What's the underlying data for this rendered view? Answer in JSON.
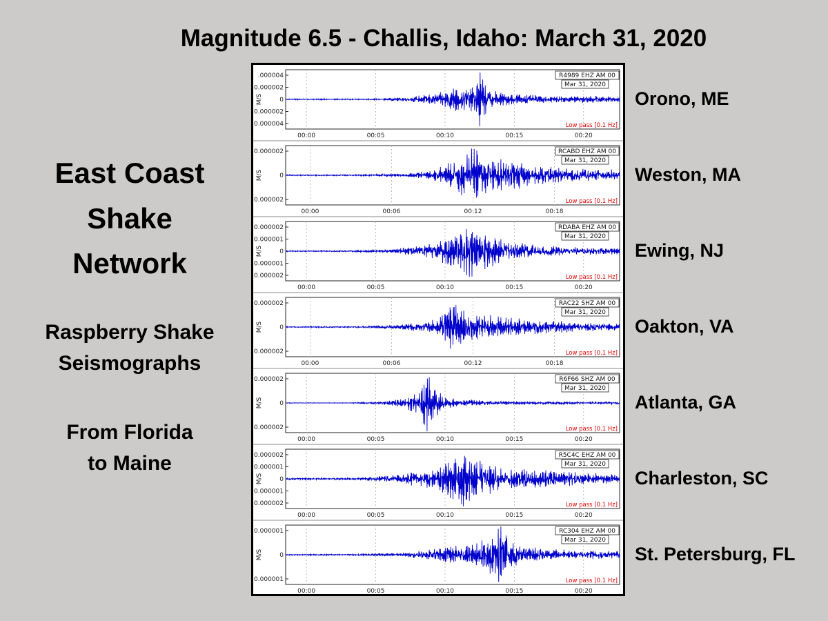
{
  "slide": {
    "title": "Magnitude 6.5 -  Challis, Idaho: March 31, 2020",
    "network_lines": [
      "East Coast",
      "Shake",
      "Network"
    ],
    "subtitle_lines": [
      "Raspberry Shake",
      "Seismographs"
    ],
    "range_lines": [
      "From Florida",
      "to Maine"
    ]
  },
  "colors": {
    "background": "#cdcbca",
    "trace": "#0000cc",
    "lowpass_text": "#dd0000",
    "grid": "#aaaaaa"
  },
  "chart_data": [
    {
      "type": "line",
      "station_label": "Orono, ME",
      "channel": "R4989 EHZ AM 00",
      "date": "Mar 31, 2020",
      "filter": "Low pass [0.1 Hz]",
      "ylabel": "M/S",
      "yticks": [
        ".000004",
        "0.000002",
        "0",
        "0.000002",
        "0.000004"
      ],
      "ylim": [
        -5e-06,
        5e-06
      ],
      "xticks": [
        "00:00",
        "00:05",
        "00:10",
        "00:15",
        "00:20"
      ],
      "xtick_minutes": [
        0,
        5,
        10,
        15,
        20
      ],
      "xlim_minutes": [
        -1.5,
        22.6
      ],
      "envelope_minutes": [
        [
          5,
          0.02
        ],
        [
          7.5,
          0.08
        ],
        [
          9.5,
          0.2
        ],
        [
          10.5,
          0.4
        ],
        [
          11.5,
          0.4
        ],
        [
          12.3,
          0.55
        ],
        [
          12.5,
          1.0
        ],
        [
          12.7,
          0.75
        ],
        [
          13.2,
          0.35
        ],
        [
          14,
          0.22
        ],
        [
          16,
          0.15
        ],
        [
          18,
          0.1
        ],
        [
          20,
          0.12
        ],
        [
          22.6,
          0.1
        ]
      ]
    },
    {
      "type": "line",
      "station_label": "Weston, MA",
      "channel": "RCABD EHZ AM 00",
      "date": "Mar 31, 2020",
      "filter": "Low pass [0.1 Hz]",
      "ylabel": "M/S",
      "yticks": [
        "0.000002",
        "0",
        "0.000002"
      ],
      "ylim": [
        -2e-06,
        2e-06
      ],
      "xticks": [
        "00:00",
        "00:06",
        "00:12",
        "00:18"
      ],
      "xtick_minutes": [
        0,
        6,
        12,
        18
      ],
      "xlim_minutes": [
        -1.8,
        22.8
      ],
      "envelope_minutes": [
        [
          3,
          0.02
        ],
        [
          7,
          0.05
        ],
        [
          9,
          0.15
        ],
        [
          10,
          0.35
        ],
        [
          11,
          0.65
        ],
        [
          11.8,
          0.8
        ],
        [
          12.3,
          1.0
        ],
        [
          12.8,
          0.7
        ],
        [
          13.8,
          0.55
        ],
        [
          15,
          0.45
        ],
        [
          16.5,
          0.32
        ],
        [
          18,
          0.25
        ],
        [
          20,
          0.22
        ],
        [
          22.8,
          0.18
        ]
      ]
    },
    {
      "type": "line",
      "station_label": "Ewing, NJ",
      "channel": "RDABA EHZ AM 00",
      "date": "Mar 31, 2020",
      "filter": "Low pass [0.1 Hz]",
      "ylabel": "M/S",
      "yticks": [
        "0.000002",
        "0.000001",
        "0",
        "0.000001",
        "0.000002"
      ],
      "ylim": [
        -2e-06,
        2e-06
      ],
      "xticks": [
        "00:00",
        "00:05",
        "00:10",
        "00:15",
        "00:20"
      ],
      "xtick_minutes": [
        0,
        5,
        10,
        15,
        20
      ],
      "xlim_minutes": [
        -1.5,
        22.6
      ],
      "envelope_minutes": [
        [
          3,
          0.02
        ],
        [
          6,
          0.06
        ],
        [
          8,
          0.15
        ],
        [
          9.5,
          0.3
        ],
        [
          10.5,
          0.55
        ],
        [
          11.2,
          0.8
        ],
        [
          11.6,
          1.0
        ],
        [
          12.2,
          0.65
        ],
        [
          13,
          0.55
        ],
        [
          14,
          0.4
        ],
        [
          16,
          0.25
        ],
        [
          18,
          0.15
        ],
        [
          20,
          0.12
        ],
        [
          22.6,
          0.1
        ]
      ]
    },
    {
      "type": "line",
      "station_label": "Oakton, VA",
      "channel": "RAC22 SHZ AM 00",
      "date": "Mar 31, 2020",
      "filter": "Low pass [0.1 Hz]",
      "ylabel": "M/S",
      "yticks": [
        "0.000002",
        "0",
        "0.000002"
      ],
      "ylim": [
        -2e-06,
        2e-06
      ],
      "xticks": [
        "00:00",
        "00:06",
        "00:12",
        "00:18"
      ],
      "xtick_minutes": [
        0,
        6,
        12,
        18
      ],
      "xlim_minutes": [
        -1.8,
        22.8
      ],
      "envelope_minutes": [
        [
          3,
          0.02
        ],
        [
          6,
          0.06
        ],
        [
          8,
          0.15
        ],
        [
          9.5,
          0.3
        ],
        [
          10.2,
          0.6
        ],
        [
          10.5,
          1.0
        ],
        [
          11,
          0.6
        ],
        [
          12,
          0.45
        ],
        [
          13,
          0.4
        ],
        [
          14,
          0.32
        ],
        [
          16,
          0.25
        ],
        [
          18,
          0.2
        ],
        [
          20,
          0.15
        ],
        [
          22.8,
          0.1
        ]
      ]
    },
    {
      "type": "line",
      "station_label": "Atlanta, GA",
      "channel": "R6F66 SHZ AM 00",
      "date": "Mar 31, 2020",
      "filter": "Low pass [0.1 Hz]",
      "ylabel": "M/S",
      "yticks": [
        "0.000002",
        "0",
        "0.000002"
      ],
      "ylim": [
        -2e-06,
        2e-06
      ],
      "xticks": [
        "00:00",
        "00:05",
        "00:10",
        "00:15",
        "00:20"
      ],
      "xtick_minutes": [
        0,
        5,
        10,
        15,
        20
      ],
      "xlim_minutes": [
        -1.5,
        22.6
      ],
      "envelope_minutes": [
        [
          3,
          0.01
        ],
        [
          5.5,
          0.05
        ],
        [
          7,
          0.15
        ],
        [
          8.2,
          0.45
        ],
        [
          8.7,
          1.0
        ],
        [
          9.3,
          0.5
        ],
        [
          10,
          0.2
        ],
        [
          11,
          0.12
        ],
        [
          13,
          0.08
        ],
        [
          16,
          0.05
        ],
        [
          20,
          0.04
        ],
        [
          22.6,
          0.04
        ]
      ]
    },
    {
      "type": "line",
      "station_label": "Charleston, SC",
      "channel": "R5C4C EHZ AM 00",
      "date": "Mar 31, 2020",
      "filter": "Low pass [0.1 Hz]",
      "ylabel": "M/S",
      "yticks": [
        "0.000002",
        "0.000001",
        "0",
        "0.000001",
        "0.000002"
      ],
      "ylim": [
        -2e-06,
        2e-06
      ],
      "xticks": [
        "00:00",
        "00:05",
        "00:10",
        "00:15",
        "00:20"
      ],
      "xtick_minutes": [
        0,
        5,
        10,
        15,
        20
      ],
      "xlim_minutes": [
        -1.5,
        22.6
      ],
      "envelope_minutes": [
        [
          3,
          0.03
        ],
        [
          6,
          0.1
        ],
        [
          8,
          0.25
        ],
        [
          9.5,
          0.35
        ],
        [
          10.5,
          0.7
        ],
        [
          11.2,
          1.0
        ],
        [
          12,
          0.7
        ],
        [
          13,
          0.5
        ],
        [
          14,
          0.35
        ],
        [
          16,
          0.3
        ],
        [
          18,
          0.25
        ],
        [
          20,
          0.2
        ],
        [
          22.6,
          0.15
        ]
      ]
    },
    {
      "type": "line",
      "station_label": "St. Petersburg, FL",
      "channel": "RC304 EHZ AM 00",
      "date": "Mar 31, 2020",
      "filter": "Low pass [0.1 Hz]",
      "ylabel": "M/S",
      "yticks": [
        "0.000001",
        "0",
        "0.000001"
      ],
      "ylim": [
        -1.3e-06,
        1.3e-06
      ],
      "xticks": [
        "00:00",
        "00:05",
        "00:10",
        "00:15",
        "00:20"
      ],
      "xtick_minutes": [
        0,
        5,
        10,
        15,
        20
      ],
      "xlim_minutes": [
        -1.5,
        22.6
      ],
      "envelope_minutes": [
        [
          3,
          0.02
        ],
        [
          7,
          0.06
        ],
        [
          9.5,
          0.2
        ],
        [
          11,
          0.3
        ],
        [
          12.5,
          0.45
        ],
        [
          13.5,
          0.65
        ],
        [
          14,
          1.0
        ],
        [
          14.5,
          0.6
        ],
        [
          15.5,
          0.35
        ],
        [
          17,
          0.2
        ],
        [
          19,
          0.15
        ],
        [
          22.6,
          0.12
        ]
      ]
    }
  ]
}
